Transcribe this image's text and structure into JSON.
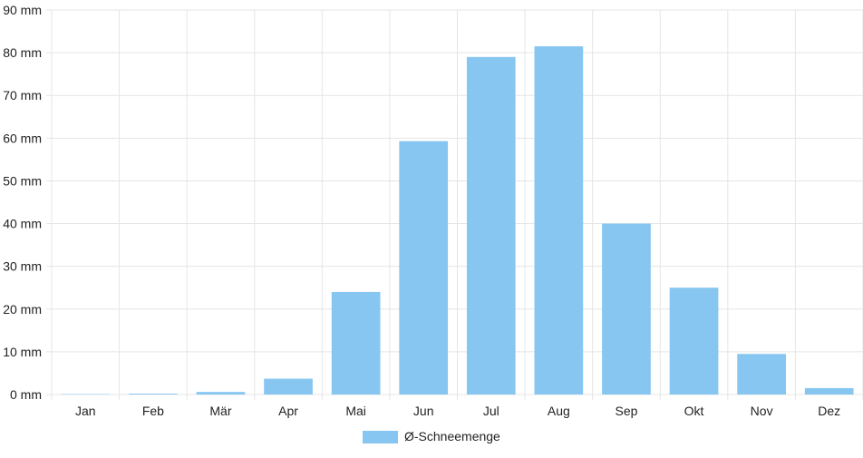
{
  "chart_data": {
    "type": "bar",
    "categories": [
      "Jan",
      "Feb",
      "Mär",
      "Apr",
      "Mai",
      "Jun",
      "Jul",
      "Aug",
      "Sep",
      "Okt",
      "Nov",
      "Dez"
    ],
    "series": [
      {
        "name": "Ø-Schneemenge",
        "values": [
          0.1,
          0.2,
          0.6,
          3.7,
          24,
          59.3,
          79,
          81.5,
          40,
          25,
          9.5,
          1.5
        ]
      }
    ],
    "y_ticks": [
      "0 mm",
      "10 mm",
      "20 mm",
      "30 mm",
      "40 mm",
      "50 mm",
      "60 mm",
      "70 mm",
      "80 mm",
      "90 mm"
    ],
    "ylim": [
      0,
      90
    ],
    "y_unit": "mm",
    "grid": true,
    "legend_position": "bottom",
    "colors": {
      "bar": "#87c6f1",
      "grid": "#e5e5e5",
      "text": "#222222"
    }
  }
}
